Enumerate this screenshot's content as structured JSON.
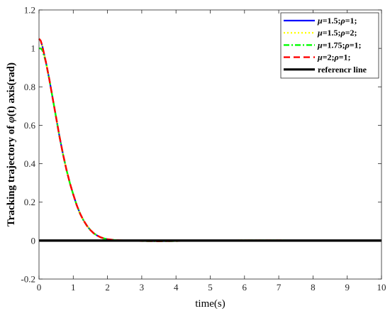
{
  "chart_data": {
    "type": "line",
    "title": "",
    "xlabel": "time(s)",
    "ylabel_prefix": "Tracking trajectory of ",
    "ylabel_symbol": "φ",
    "ylabel_suffix": "(t) axis(rad)",
    "xlim": [
      0,
      10
    ],
    "ylim": [
      -0.2,
      1.2
    ],
    "xticks": [
      "0",
      "1",
      "2",
      "3",
      "4",
      "5",
      "6",
      "7",
      "8",
      "9",
      "10"
    ],
    "yticks": [
      "-0.2",
      "0",
      "0.2",
      "0.4",
      "0.6",
      "0.8",
      "1",
      "1.2"
    ],
    "grid": false,
    "legend_position": "top-right",
    "series": [
      {
        "label_parts": [
          [
            "μ",
            true
          ],
          [
            "=1.5;",
            false
          ],
          [
            "ρ",
            true
          ],
          [
            "=1;",
            false
          ]
        ],
        "color": "#0000ff",
        "style": "solid",
        "x": [
          0,
          0.05,
          0.1,
          0.2,
          0.3,
          0.4,
          0.5,
          0.6,
          0.7,
          0.8,
          0.9,
          1.0,
          1.1,
          1.2,
          1.3,
          1.4,
          1.5,
          1.6,
          1.7,
          1.8,
          1.9,
          2.0,
          2.2,
          2.5,
          3.0,
          3.5,
          4.0,
          5.0,
          6.0,
          7.0,
          8.0,
          9.0,
          10.0
        ],
        "y": [
          1.05,
          1.04,
          1.01,
          0.93,
          0.84,
          0.74,
          0.64,
          0.54,
          0.45,
          0.37,
          0.3,
          0.24,
          0.185,
          0.14,
          0.105,
          0.077,
          0.055,
          0.038,
          0.026,
          0.017,
          0.011,
          0.007,
          0.003,
          0.0,
          -0.002,
          -0.003,
          -0.002,
          0.0,
          0.001,
          0.001,
          0.0,
          0.0,
          0.0
        ]
      },
      {
        "label_parts": [
          [
            "μ",
            true
          ],
          [
            "=1.5;",
            false
          ],
          [
            "ρ",
            true
          ],
          [
            "=2;",
            false
          ]
        ],
        "color": "#ffff00",
        "style": "dotted",
        "x": [
          0,
          0.05,
          0.1,
          0.2,
          0.3,
          0.4,
          0.5,
          0.6,
          0.7,
          0.8,
          0.9,
          1.0,
          1.1,
          1.2,
          1.3,
          1.4,
          1.5,
          1.6,
          1.7,
          1.8,
          1.9,
          2.0,
          2.2,
          2.5,
          3.0,
          3.5,
          4.0,
          5.0,
          6.0,
          7.0,
          8.0,
          9.0,
          10.0
        ],
        "y": [
          1.05,
          1.04,
          1.01,
          0.93,
          0.84,
          0.74,
          0.64,
          0.54,
          0.45,
          0.37,
          0.3,
          0.24,
          0.185,
          0.14,
          0.105,
          0.077,
          0.055,
          0.038,
          0.026,
          0.017,
          0.011,
          0.007,
          0.003,
          0.0,
          -0.002,
          -0.003,
          -0.002,
          0.0,
          0.001,
          0.001,
          0.0,
          0.0,
          0.0
        ]
      },
      {
        "label_parts": [
          [
            "μ",
            true
          ],
          [
            "=1.75;",
            false
          ],
          [
            "ρ",
            true
          ],
          [
            "=1;",
            false
          ]
        ],
        "color": "#00ff00",
        "style": "dashdot",
        "x": [
          0,
          0.05,
          0.1,
          0.2,
          0.3,
          0.4,
          0.5,
          0.6,
          0.7,
          0.8,
          0.9,
          1.0,
          1.1,
          1.2,
          1.3,
          1.4,
          1.5,
          1.6,
          1.7,
          1.8,
          1.9,
          2.0,
          2.2,
          2.5,
          3.0,
          3.5,
          4.0,
          5.0,
          6.0,
          7.0,
          8.0,
          9.0,
          10.0
        ],
        "y": [
          1.0,
          1.0,
          0.99,
          0.93,
          0.84,
          0.74,
          0.64,
          0.54,
          0.45,
          0.37,
          0.3,
          0.24,
          0.185,
          0.14,
          0.105,
          0.077,
          0.055,
          0.038,
          0.026,
          0.017,
          0.011,
          0.007,
          0.003,
          0.0,
          -0.002,
          -0.003,
          -0.002,
          0.0,
          0.001,
          0.001,
          0.0,
          0.0,
          0.0
        ]
      },
      {
        "label_parts": [
          [
            "μ",
            true
          ],
          [
            "=2;",
            false
          ],
          [
            "ρ",
            true
          ],
          [
            "=1;",
            false
          ]
        ],
        "color": "#ff0000",
        "style": "dashed",
        "x": [
          0,
          0.05,
          0.1,
          0.2,
          0.3,
          0.4,
          0.5,
          0.6,
          0.7,
          0.8,
          0.9,
          1.0,
          1.1,
          1.2,
          1.3,
          1.4,
          1.5,
          1.6,
          1.7,
          1.8,
          1.9,
          2.0,
          2.2,
          2.5,
          3.0,
          3.5,
          4.0,
          5.0,
          6.0,
          7.0,
          8.0,
          9.0,
          10.0
        ],
        "y": [
          1.05,
          1.04,
          1.01,
          0.93,
          0.84,
          0.74,
          0.64,
          0.54,
          0.45,
          0.37,
          0.3,
          0.24,
          0.185,
          0.14,
          0.105,
          0.077,
          0.055,
          0.038,
          0.026,
          0.017,
          0.011,
          0.007,
          0.003,
          0.0,
          -0.002,
          -0.003,
          -0.002,
          0.0,
          0.001,
          0.001,
          0.0,
          0.0,
          0.0
        ]
      },
      {
        "label_parts": [
          [
            "referencr line",
            false
          ]
        ],
        "color": "#000000",
        "style": "solid-thick",
        "x": [
          0,
          10
        ],
        "y": [
          0,
          0
        ]
      }
    ]
  }
}
